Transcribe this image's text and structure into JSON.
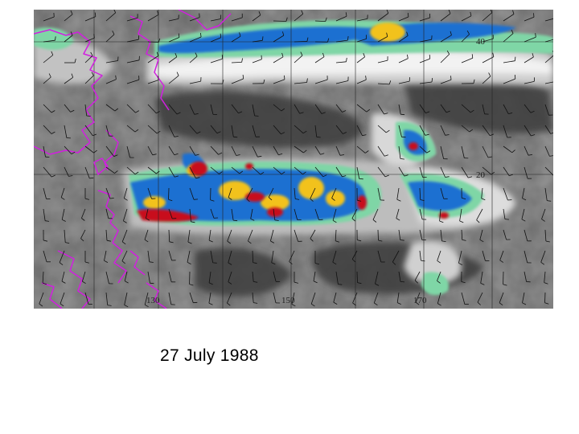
{
  "map": {
    "lon_labels": [
      "130",
      "150",
      "170"
    ],
    "lat_labels": [
      "40",
      "20"
    ],
    "colors": {
      "background_gray": "#6e6e6e",
      "dark_gray": "#3c3c3c",
      "light_gray": "#bdbdbd",
      "white": "#f4f4f4",
      "green": "#7fd6a6",
      "blue": "#1f6fd1",
      "yellow": "#f2c21a",
      "red": "#c8101e",
      "coastline": "#d21fe0",
      "wind_barbs": "#111111",
      "grid_lines": "#222222"
    },
    "layers": [
      "infrared-cloud-imagery",
      "coastlines",
      "wind-barbs",
      "lat-lon-grid"
    ]
  },
  "caption": {
    "date": "27 July 1988"
  }
}
